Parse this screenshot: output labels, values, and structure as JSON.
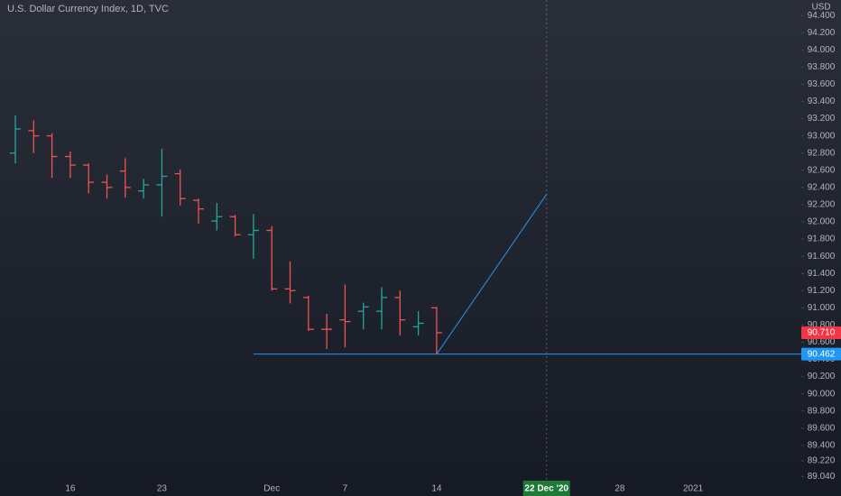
{
  "chart_data": {
    "type": "ohlc",
    "title": "U.S. Dollar Currency Index, 1D, TVC",
    "currency": "USD",
    "categories": [
      null,
      null,
      null,
      "16",
      null,
      null,
      null,
      null,
      "23",
      null,
      null,
      null,
      null,
      null,
      "Dec",
      null,
      null,
      null,
      "7",
      null,
      null,
      null,
      null,
      "14",
      null,
      null,
      null,
      null,
      null,
      "22 Dec '20",
      null,
      null,
      null,
      "28",
      null,
      null,
      null,
      "2021",
      null,
      null,
      null,
      null,
      null
    ],
    "open": [
      92.8,
      93.06,
      93.0,
      92.76,
      92.66,
      92.46,
      92.59,
      92.36,
      92.43,
      92.56,
      92.25,
      92.01,
      92.06,
      91.85,
      91.9,
      91.22,
      91.12,
      90.75,
      90.86,
      90.96,
      90.96,
      91.12,
      90.78,
      91.0,
      null,
      null,
      null,
      null,
      null,
      null,
      null,
      null,
      null,
      null,
      null,
      null,
      null,
      null,
      null,
      null,
      null,
      null,
      null
    ],
    "high": [
      93.24,
      93.18,
      93.03,
      92.82,
      92.68,
      92.55,
      92.74,
      92.5,
      92.85,
      92.61,
      92.27,
      92.22,
      92.08,
      92.09,
      91.95,
      91.54,
      91.14,
      90.93,
      91.27,
      91.06,
      91.24,
      91.2,
      90.96,
      91.01,
      null,
      null,
      null,
      null,
      null,
      null,
      null,
      null,
      null,
      null,
      null,
      null,
      null,
      null,
      null,
      null,
      null,
      null,
      null
    ],
    "low": [
      92.68,
      92.8,
      92.51,
      92.51,
      92.33,
      92.27,
      92.28,
      92.27,
      92.06,
      92.19,
      91.98,
      91.9,
      91.83,
      91.57,
      91.2,
      91.05,
      90.73,
      90.52,
      90.54,
      90.75,
      90.75,
      90.68,
      90.68,
      90.46,
      null,
      null,
      null,
      null,
      null,
      null,
      null,
      null,
      null,
      null,
      null,
      null,
      null,
      null,
      null,
      null,
      null,
      null,
      null
    ],
    "close": [
      93.08,
      93.0,
      92.76,
      92.66,
      92.46,
      92.4,
      92.4,
      92.43,
      92.53,
      92.27,
      92.15,
      92.06,
      91.85,
      91.9,
      91.22,
      91.2,
      90.75,
      90.75,
      90.84,
      91.01,
      91.12,
      90.86,
      90.82,
      90.71,
      null,
      null,
      null,
      null,
      null,
      null,
      null,
      null,
      null,
      null,
      null,
      null,
      null,
      null,
      null,
      null,
      null,
      null,
      null
    ],
    "up_color": "#26a69a",
    "down_color": "#ef5350",
    "ylim": [
      89.0,
      94.58
    ],
    "yticks": [
      {
        "value": 94.4,
        "label": "94.400"
      },
      {
        "value": 94.2,
        "label": "94.200"
      },
      {
        "value": 94.0,
        "label": "94.000"
      },
      {
        "value": 93.8,
        "label": "93.800"
      },
      {
        "value": 93.6,
        "label": "93.600"
      },
      {
        "value": 93.4,
        "label": "93.400"
      },
      {
        "value": 93.2,
        "label": "93.200"
      },
      {
        "value": 93.0,
        "label": "93.000"
      },
      {
        "value": 92.8,
        "label": "92.800"
      },
      {
        "value": 92.6,
        "label": "92.600"
      },
      {
        "value": 92.4,
        "label": "92.400"
      },
      {
        "value": 92.2,
        "label": "92.200"
      },
      {
        "value": 92.0,
        "label": "92.000"
      },
      {
        "value": 91.8,
        "label": "91.800"
      },
      {
        "value": 91.6,
        "label": "91.600"
      },
      {
        "value": 91.4,
        "label": "91.400"
      },
      {
        "value": 91.2,
        "label": "91.200"
      },
      {
        "value": 91.0,
        "label": "91.000"
      },
      {
        "value": 90.8,
        "label": "90.800"
      },
      {
        "value": 90.6,
        "label": "90.600"
      },
      {
        "value": 90.4,
        "label": "90.400"
      },
      {
        "value": 90.2,
        "label": "90.200"
      },
      {
        "value": 90.0,
        "label": "90.000"
      },
      {
        "value": 89.8,
        "label": "89.800"
      },
      {
        "value": 89.6,
        "label": "89.600"
      },
      {
        "value": 89.4,
        "label": "89.400"
      },
      {
        "value": 89.22,
        "label": "89.220"
      },
      {
        "value": 89.04,
        "label": "89.040"
      }
    ],
    "last_price": {
      "value": 90.71,
      "label": "90.710",
      "color": "#f23645"
    },
    "horizontal_line": {
      "value": 90.462,
      "label": "90.462",
      "color": "#2196f3"
    },
    "trend_line": {
      "from": {
        "category": "14",
        "value": 90.46
      },
      "to": {
        "category": "22 Dec '20",
        "value": 92.32
      },
      "color": "#2196f3"
    },
    "crosshair": {
      "category": "22 Dec '20",
      "color": "#1e7a34"
    }
  }
}
